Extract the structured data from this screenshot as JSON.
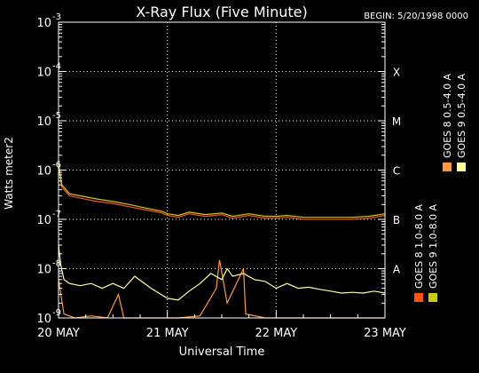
{
  "chart_data": {
    "type": "line",
    "title": "X-Ray Flux (Five Minute)",
    "begin_label": "BEGIN: 5/20/1998 0000",
    "xlabel": "Universal Time",
    "ylabel": "Watts meter2",
    "x_ticks": [
      "20 MAY",
      "21 MAY",
      "22 MAY",
      "23 MAY"
    ],
    "x_range_days": [
      0,
      3
    ],
    "y_scale": "log",
    "y_range": [
      1e-09,
      0.001
    ],
    "y_ticks": [
      {
        "exp": "-9",
        "value": 1e-09
      },
      {
        "exp": "-8",
        "value": 1e-08
      },
      {
        "exp": "-7",
        "value": 1e-07
      },
      {
        "exp": "-6",
        "value": 1e-06
      },
      {
        "exp": "-5",
        "value": 1e-05
      },
      {
        "exp": "-4",
        "value": 0.0001
      },
      {
        "exp": "-3",
        "value": 0.001
      }
    ],
    "flare_classes": [
      {
        "label": "A",
        "value": 1e-08
      },
      {
        "label": "B",
        "value": 1e-07
      },
      {
        "label": "C",
        "value": 1e-06
      },
      {
        "label": "M",
        "value": 1e-05
      },
      {
        "label": "X",
        "value": 0.0001
      }
    ],
    "grid": true,
    "legend_position": "right-vertical",
    "series": [
      {
        "name": "GOES 8 1.0-8.0 A",
        "color": "#ff5500",
        "x": [
          0.0,
          0.03,
          0.1,
          0.2,
          0.35,
          0.5,
          0.65,
          0.8,
          0.95,
          1.0,
          1.1,
          1.2,
          1.35,
          1.5,
          1.6,
          1.75,
          1.9,
          2.0,
          2.1,
          2.25,
          2.4,
          2.55,
          2.7,
          2.85,
          3.0
        ],
        "y": [
          1.2e-06,
          4.5e-07,
          3e-07,
          2.7e-07,
          2.3e-07,
          2.1e-07,
          1.8e-07,
          1.55e-07,
          1.35e-07,
          1.2e-07,
          1.1e-07,
          1.3e-07,
          1.15e-07,
          1.25e-07,
          1.05e-07,
          1.2e-07,
          1.05e-07,
          1.05e-07,
          1.1e-07,
          1e-07,
          1e-07,
          1e-07,
          1e-07,
          1.05e-07,
          1.2e-07
        ]
      },
      {
        "name": "GOES 8 0.5-4.0 A",
        "color": "#ff9933",
        "x": [
          0.0,
          0.05,
          0.15,
          0.3,
          0.45,
          0.55,
          0.6,
          0.8,
          1.0,
          1.1,
          1.3,
          1.45,
          1.48,
          1.55,
          1.7,
          1.72,
          1.9,
          2.0,
          2.2,
          2.5,
          2.8,
          3.0
        ],
        "y": [
          6e-09,
          1.2e-09,
          1e-09,
          1.1e-09,
          1e-09,
          3e-09,
          1e-09,
          1e-09,
          1e-09,
          1e-09,
          1.1e-09,
          4e-09,
          1.5e-08,
          2e-09,
          1e-08,
          1.2e-09,
          1e-09,
          1e-09,
          1e-09,
          1e-09,
          1e-09,
          1e-09
        ]
      },
      {
        "name": "GOES 9 1.0-8.0 A",
        "color": "#cccc00",
        "x": [
          0.0,
          0.03,
          0.1,
          0.2,
          0.35,
          0.5,
          0.65,
          0.8,
          0.95,
          1.0,
          1.1,
          1.2,
          1.35,
          1.5,
          1.6,
          1.75,
          1.9,
          2.0,
          2.1,
          2.25,
          2.4,
          2.55,
          2.7,
          2.85,
          3.0
        ],
        "y": [
          1.4e-06,
          5e-07,
          3.3e-07,
          3e-07,
          2.6e-07,
          2.3e-07,
          2e-07,
          1.7e-07,
          1.45e-07,
          1.3e-07,
          1.2e-07,
          1.4e-07,
          1.25e-07,
          1.35e-07,
          1.15e-07,
          1.3e-07,
          1.15e-07,
          1.15e-07,
          1.2e-07,
          1.1e-07,
          1.1e-07,
          1.1e-07,
          1.1e-07,
          1.15e-07,
          1.3e-07
        ]
      },
      {
        "name": "GOES 9 0.5-4.0 A",
        "color": "#ffff99",
        "x": [
          0.0,
          0.02,
          0.05,
          0.1,
          0.2,
          0.3,
          0.4,
          0.5,
          0.6,
          0.7,
          0.85,
          1.0,
          1.1,
          1.2,
          1.3,
          1.4,
          1.5,
          1.55,
          1.6,
          1.7,
          1.8,
          1.9,
          2.0,
          2.1,
          2.2,
          2.3,
          2.4,
          2.5,
          2.6,
          2.7,
          2.8,
          2.9,
          3.0
        ],
        "y": [
          3e-08,
          1.2e-08,
          6e-09,
          5e-09,
          4.5e-09,
          5e-09,
          4e-09,
          5e-09,
          4e-09,
          7e-09,
          4e-09,
          2.5e-09,
          2.3e-09,
          3.5e-09,
          5e-09,
          8e-09,
          6e-09,
          1e-08,
          7e-09,
          8e-09,
          6e-09,
          5.5e-09,
          4e-09,
          5e-09,
          4e-09,
          4.2e-09,
          3.8e-09,
          3.5e-09,
          3.2e-09,
          3.3e-09,
          3.2e-09,
          3.5e-09,
          3.2e-09
        ]
      }
    ]
  }
}
